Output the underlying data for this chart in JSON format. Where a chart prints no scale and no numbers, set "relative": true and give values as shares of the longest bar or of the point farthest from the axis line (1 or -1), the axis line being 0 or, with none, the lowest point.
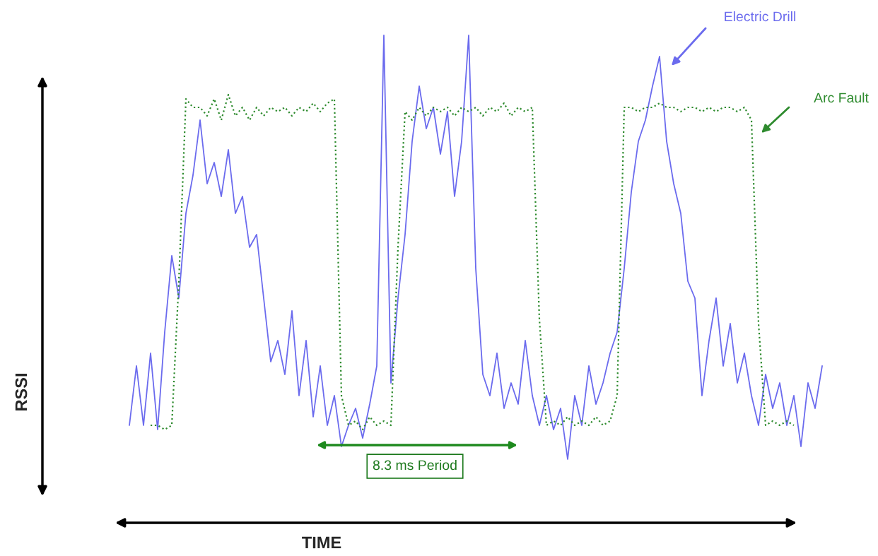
{
  "chart_data": {
    "type": "line",
    "relative": true,
    "categories": [
      null,
      null,
      null,
      null,
      null,
      null,
      null,
      null,
      null,
      null,
      null,
      null,
      null,
      null,
      null,
      null,
      null,
      null,
      null,
      null,
      null,
      null,
      null,
      null,
      null,
      null,
      null,
      null,
      null,
      null,
      null,
      null,
      null,
      null,
      null,
      null,
      null,
      null,
      null,
      null,
      null,
      null,
      null,
      null,
      null,
      null,
      null,
      null,
      null,
      null,
      null,
      null,
      null,
      null,
      null,
      null,
      null,
      null,
      null,
      null,
      null,
      null,
      null,
      null,
      null,
      null,
      null,
      null,
      null,
      null,
      null,
      null,
      null,
      null,
      null,
      null,
      null,
      null,
      null,
      null,
      null,
      null,
      null,
      null,
      null,
      null,
      null,
      null,
      null,
      null,
      null,
      null,
      null,
      null,
      null,
      null,
      null,
      null,
      null
    ],
    "series": [
      {
        "name": "Electric Drill",
        "color": "#6b6bee",
        "line_style": "solid",
        "values": [
          0.08,
          0.22,
          0.08,
          0.25,
          0.07,
          0.3,
          0.48,
          0.38,
          0.58,
          0.67,
          0.8,
          0.65,
          0.7,
          0.62,
          0.73,
          0.58,
          0.62,
          0.5,
          0.53,
          0.38,
          0.23,
          0.28,
          0.2,
          0.35,
          0.15,
          0.28,
          0.1,
          0.22,
          0.08,
          0.15,
          0.03,
          0.08,
          0.12,
          0.05,
          0.13,
          0.22,
          1,
          0.18,
          0.38,
          0.53,
          0.75,
          0.88,
          0.78,
          0.83,
          0.72,
          0.82,
          0.62,
          0.75,
          1,
          0.45,
          0.2,
          0.15,
          0.25,
          0.12,
          0.18,
          0.13,
          0.28,
          0.15,
          0.08,
          0.15,
          0.07,
          0.12,
          0,
          0.15,
          0.08,
          0.22,
          0.13,
          0.18,
          0.25,
          0.3,
          0.45,
          0.63,
          0.75,
          0.8,
          0.88,
          0.95,
          0.75,
          0.65,
          0.58,
          0.42,
          0.38,
          0.15,
          0.28,
          0.38,
          0.22,
          0.32,
          0.18,
          0.25,
          0.15,
          0.08,
          0.2,
          0.12,
          0.18,
          0.08,
          0.15,
          0.03,
          0.18,
          0.12,
          0.22
        ]
      },
      {
        "name": "Arc Fault",
        "color": "#2e8b2e",
        "line_style": "dotted",
        "values": [
          null,
          null,
          null,
          0.08,
          0.08,
          0.07,
          0.08,
          0.42,
          0.85,
          0.83,
          0.83,
          0.81,
          0.85,
          0.8,
          0.86,
          0.81,
          0.83,
          0.8,
          0.83,
          0.81,
          0.83,
          0.82,
          0.83,
          0.81,
          0.83,
          0.82,
          0.84,
          0.82,
          0.84,
          0.85,
          0.15,
          0.08,
          0.09,
          0.07,
          0.1,
          0.08,
          0.09,
          0.08,
          0.5,
          0.82,
          0.8,
          0.83,
          0.81,
          0.83,
          0.82,
          0.83,
          0.81,
          0.83,
          0.82,
          0.83,
          0.81,
          0.83,
          0.82,
          0.84,
          0.81,
          0.83,
          0.82,
          0.83,
          0.33,
          0.08,
          0.09,
          0.08,
          0.1,
          0.08,
          0.09,
          0.08,
          0.1,
          0.08,
          0.09,
          0.15,
          0.83,
          0.83,
          0.82,
          0.83,
          0.83,
          0.84,
          0.83,
          0.83,
          0.82,
          0.83,
          0.83,
          0.82,
          0.83,
          0.82,
          0.83,
          0.83,
          0.82,
          0.83,
          0.8,
          0.32,
          0.08,
          0.09,
          0.08,
          0.09,
          0.08,
          null,
          null,
          null,
          null
        ]
      }
    ],
    "annotations": [
      "8.3 ms Period",
      "RSSI",
      "TIME"
    ]
  }
}
